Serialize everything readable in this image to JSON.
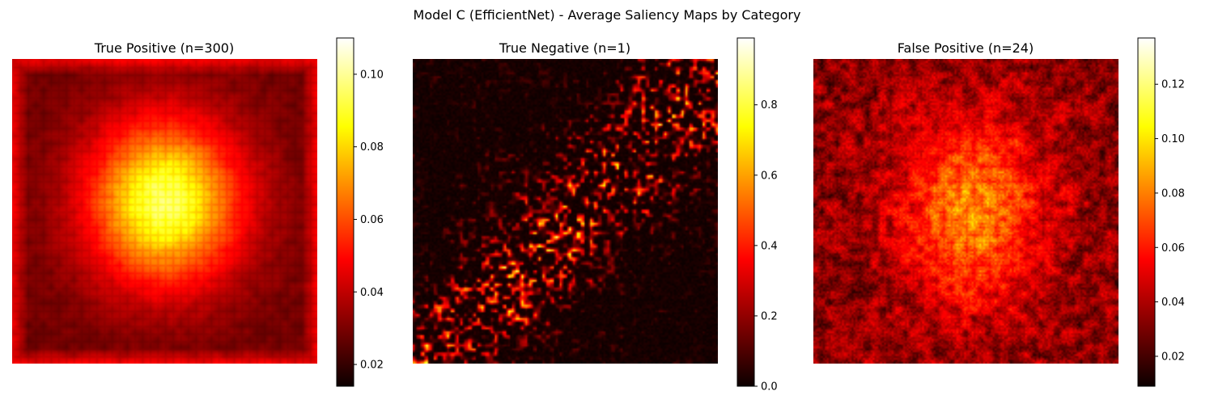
{
  "figure": {
    "suptitle": "Model C (EfficientNet) - Average Saliency Maps by Category"
  },
  "chart_data": [
    {
      "type": "heatmap",
      "title": "True Positive (n=300)",
      "colormap": "hot",
      "pattern": "smooth central blob",
      "colorbar": {
        "min": 0.014,
        "max": 0.11,
        "ticks": [
          0.02,
          0.04,
          0.06,
          0.08,
          0.1
        ],
        "tick_labels": [
          "0.02",
          "0.04",
          "0.06",
          "0.08",
          "0.10"
        ]
      }
    },
    {
      "type": "heatmap",
      "title": "True Negative (n=1)",
      "colormap": "hot",
      "pattern": "sparse noisy speckle",
      "colorbar": {
        "min": 0.0,
        "max": 0.99,
        "ticks": [
          0.0,
          0.2,
          0.4,
          0.6,
          0.8
        ],
        "tick_labels": [
          "0.0",
          "0.2",
          "0.4",
          "0.6",
          "0.8"
        ]
      }
    },
    {
      "type": "heatmap",
      "title": "False Positive (n=24)",
      "colormap": "hot",
      "pattern": "noisy central blob",
      "colorbar": {
        "min": 0.009,
        "max": 0.137,
        "ticks": [
          0.02,
          0.04,
          0.06,
          0.08,
          0.1,
          0.12
        ],
        "tick_labels": [
          "0.02",
          "0.04",
          "0.06",
          "0.08",
          "0.10",
          "0.12"
        ]
      }
    }
  ]
}
